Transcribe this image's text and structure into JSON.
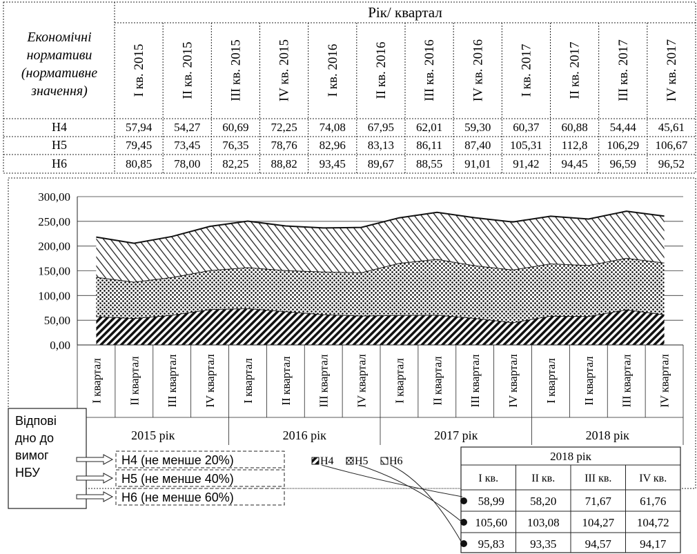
{
  "top_table": {
    "row_header": "Економічні нормативи (нормативне значення)",
    "row_header_lines": [
      "Економічні",
      "нормативи",
      "(нормативне",
      "значення)"
    ],
    "group_title": "Рік/ квартал",
    "columns": [
      "I кв. 2015",
      "II кв. 2015",
      "III кв. 2015",
      "IV кв. 2015",
      "I кв. 2016",
      "II кв. 2016",
      "III кв. 2016",
      "IV кв. 2016",
      "I кв. 2017",
      "II кв. 2017",
      "III кв. 2017",
      "IV кв. 2017"
    ],
    "rows": [
      {
        "label": "Н4",
        "values": [
          "57,94",
          "54,27",
          "60,69",
          "72,25",
          "74,08",
          "67,95",
          "62,01",
          "59,30",
          "60,37",
          "60,88",
          "54,44",
          "45,61"
        ]
      },
      {
        "label": "Н5",
        "values": [
          "79,45",
          "73,45",
          "76,35",
          "78,76",
          "82,96",
          "83,13",
          "86,11",
          "87,40",
          "105,31",
          "112,8",
          "106,29",
          "106,67"
        ]
      },
      {
        "label": "Н6",
        "values": [
          "80,85",
          "78,00",
          "82,25",
          "88,82",
          "93,45",
          "89,67",
          "88,55",
          "91,01",
          "91,42",
          "94,45",
          "96,59",
          "96,52"
        ]
      }
    ]
  },
  "chart_data": {
    "type": "area",
    "stacked": true,
    "categories": [
      "I квартал",
      "II квартал",
      "III квартал",
      "IV квартал",
      "I квартал",
      "II квартал",
      "III квартал",
      "IV квартал",
      "I квартал",
      "II квартал",
      "III квартал",
      "IV квартал",
      "I квартал",
      "II квартал",
      "III квартал",
      "IV квартал"
    ],
    "groups": [
      "2015 рік",
      "2016 рік",
      "2017 рік",
      "2018 рік"
    ],
    "series": [
      {
        "name": "Н4",
        "values": [
          57.94,
          54.27,
          60.69,
          72.25,
          74.08,
          67.95,
          62.01,
          59.3,
          60.37,
          60.88,
          54.44,
          45.61,
          58.99,
          58.2,
          71.67,
          61.76
        ]
      },
      {
        "name": "Н5",
        "values": [
          79.45,
          73.45,
          76.35,
          78.76,
          82.96,
          83.13,
          86.11,
          87.4,
          105.31,
          112.8,
          106.29,
          106.67,
          105.6,
          103.08,
          104.27,
          104.72
        ]
      },
      {
        "name": "Н6",
        "values": [
          80.85,
          78.0,
          82.25,
          88.82,
          93.45,
          89.67,
          88.55,
          91.01,
          91.42,
          94.45,
          96.59,
          96.52,
          95.83,
          93.35,
          94.57,
          94.17
        ]
      }
    ],
    "y_ticks": [
      "0,00",
      "50,00",
      "100,00",
      "150,00",
      "200,00",
      "250,00",
      "300,00"
    ],
    "ylim": [
      0,
      300
    ],
    "grid": true,
    "legend": [
      "Н4",
      "Н5",
      "Н6"
    ],
    "legend_placement": "bottom-center"
  },
  "requirements": {
    "box_label_lines": [
      "Відпові",
      "дно до",
      "вимог",
      "НБУ"
    ],
    "items": [
      "Н4 (не менше 20%)",
      "Н5 (не менше 40%)",
      "Н6 (не менше 60%)"
    ]
  },
  "table_2018": {
    "title": "2018 рік",
    "columns": [
      "I кв.",
      "II кв.",
      "III кв.",
      "IV кв."
    ],
    "rows": [
      [
        "58,99",
        "58,20",
        "71,67",
        "61,76"
      ],
      [
        "105,60",
        "103,08",
        "104,27",
        "104,72"
      ],
      [
        "95,83",
        "93,35",
        "94,57",
        "94,17"
      ]
    ]
  }
}
